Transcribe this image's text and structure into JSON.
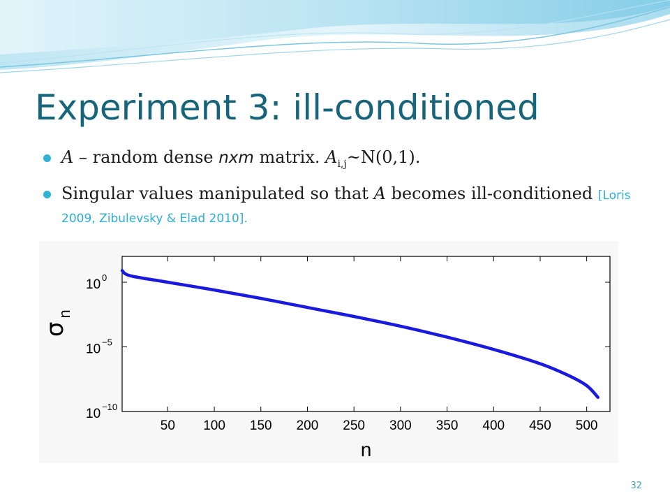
{
  "slide": {
    "title": "Experiment 3: ill-conditioned",
    "bullet1": {
      "a": "A",
      "t1": " – random dense ",
      "n": "n",
      "x": "x",
      "m": "m",
      "t2": " matrix.   ",
      "a2": "A",
      "sub": "i,j",
      "t3": "~N(0,1)."
    },
    "bullet2": {
      "t1": "Singular values manipulated so that ",
      "a": "A",
      "t2": " becomes ill-conditioned ",
      "cite": "[Loris 2009, Zibulevsky & Elad 2010]."
    },
    "page_number": "32"
  },
  "chart_data": {
    "type": "line",
    "ylog": true,
    "xlim": [
      1,
      525
    ],
    "ylim_log10": [
      -10,
      2
    ],
    "x_ticks": [
      50,
      100,
      150,
      200,
      250,
      300,
      350,
      400,
      450,
      500
    ],
    "y_tick_exponents": [
      0,
      -5,
      -10
    ],
    "y_tick_base": "10",
    "y_tick_sups": [
      "0",
      "−5",
      "−10"
    ],
    "xlabel": "n",
    "ylabel_main": "σ",
    "ylabel_sub": "n",
    "series": [
      {
        "color": "#1a1adf",
        "points_n": [
          1,
          10,
          50,
          100,
          150,
          200,
          250,
          300,
          350,
          400,
          450,
          480,
          500,
          512
        ],
        "points_log10_sigma": [
          0.9,
          0.5,
          0.0,
          -0.6,
          -1.25,
          -1.95,
          -2.65,
          -3.4,
          -4.25,
          -5.2,
          -6.3,
          -7.2,
          -8.0,
          -8.9
        ]
      }
    ],
    "grid": false
  }
}
